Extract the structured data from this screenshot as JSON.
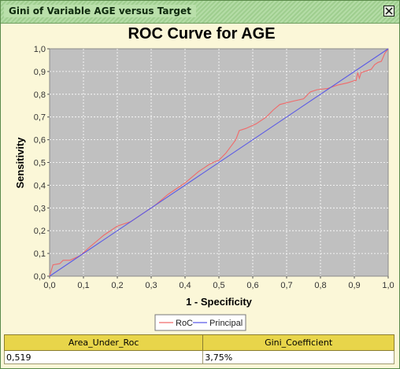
{
  "window": {
    "title": "Gini of Variable AGE versus Target"
  },
  "colors": {
    "roc": "#f06a6a",
    "principal": "#5a5ae6",
    "plot_bg": "#c0c0c0",
    "grid": "#ffffff",
    "header_bg": "#e8d54a"
  },
  "chart_data": {
    "type": "line",
    "title": "ROC Curve for AGE",
    "xlabel": "1 - Specificity",
    "ylabel": "Sensitivity",
    "xlim": [
      0,
      1
    ],
    "ylim": [
      0,
      1
    ],
    "xticks": [
      "0,0",
      "0,1",
      "0,2",
      "0,3",
      "0,4",
      "0,5",
      "0,6",
      "0,7",
      "0,8",
      "0,9",
      "1,0"
    ],
    "yticks": [
      "0,0",
      "0,1",
      "0,2",
      "0,3",
      "0,4",
      "0,5",
      "0,6",
      "0,7",
      "0,8",
      "0,9",
      "1,0"
    ],
    "grid": true,
    "legend_position": "bottom",
    "series": [
      {
        "name": "RoC",
        "x": [
          0,
          0.01,
          0.03,
          0.04,
          0.06,
          0.09,
          0.12,
          0.16,
          0.2,
          0.24,
          0.28,
          0.31,
          0.35,
          0.4,
          0.44,
          0.47,
          0.49,
          0.5,
          0.52,
          0.54,
          0.55,
          0.56,
          0.58,
          0.61,
          0.64,
          0.66,
          0.68,
          0.72,
          0.75,
          0.77,
          0.79,
          0.82,
          0.85,
          0.88,
          0.9,
          0.905,
          0.91,
          0.915,
          0.92,
          0.95,
          0.96,
          0.97,
          0.98,
          0.99,
          1.0
        ],
        "y": [
          0,
          0.05,
          0.055,
          0.07,
          0.07,
          0.09,
          0.13,
          0.18,
          0.22,
          0.24,
          0.28,
          0.31,
          0.36,
          0.41,
          0.46,
          0.49,
          0.505,
          0.51,
          0.54,
          0.58,
          0.6,
          0.64,
          0.65,
          0.67,
          0.7,
          0.73,
          0.755,
          0.77,
          0.78,
          0.81,
          0.82,
          0.825,
          0.84,
          0.85,
          0.86,
          0.86,
          0.895,
          0.87,
          0.895,
          0.91,
          0.93,
          0.94,
          0.945,
          0.98,
          1.0
        ]
      },
      {
        "name": "Principal",
        "x": [
          0,
          1
        ],
        "y": [
          0,
          1
        ]
      }
    ]
  },
  "table": {
    "headers": [
      "Area_Under_Roc",
      "Gini_Coefficient"
    ],
    "values": [
      "0,519",
      "3,75%"
    ]
  }
}
